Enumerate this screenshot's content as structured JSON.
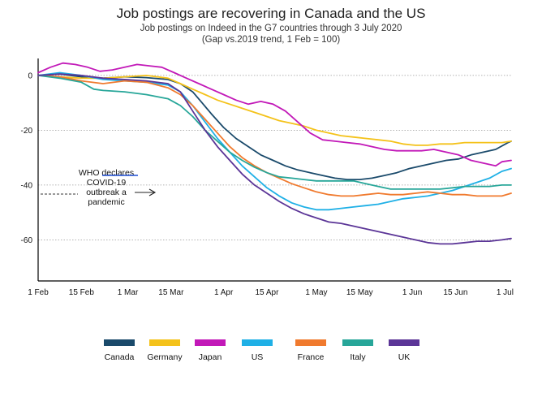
{
  "chart_data": {
    "type": "line",
    "title": "Job postings are recovering in Canada and the US",
    "subtitle": [
      "Job postings on Indeed in the G7 countries through 3 July 2020",
      "(Gap vs.2019 trend, 1 Feb = 100)"
    ],
    "xlabel": "",
    "ylabel": "",
    "ylim": [
      -75,
      5
    ],
    "xlim": [
      0,
      153
    ],
    "yticks": [
      0,
      -20,
      -40,
      -60
    ],
    "ytick_labels": [
      "0",
      "-20",
      "-40",
      "-60"
    ],
    "xticks": [
      0,
      14,
      29,
      43,
      60,
      74,
      90,
      104,
      121,
      135,
      151
    ],
    "xtick_labels": [
      "1 Feb",
      "15 Feb",
      "1 Mar",
      "15 Mar",
      "1 Apr",
      "15 Apr",
      "1 May",
      "15 May",
      "1 Jun",
      "15 Jun",
      "1 Jul"
    ],
    "x_unit": "days since 1 Feb 2020",
    "grid": "horizontal dotted",
    "legend": "bottom",
    "series": [
      {
        "name": "Canada",
        "color": "#1a4a6b",
        "x": [
          0,
          7,
          14,
          21,
          28,
          35,
          42,
          46,
          50,
          53,
          56,
          60,
          64,
          68,
          72,
          76,
          80,
          84,
          88,
          92,
          96,
          100,
          104,
          108,
          112,
          116,
          120,
          124,
          128,
          132,
          136,
          140,
          144,
          148,
          152,
          153
        ],
        "y": [
          0,
          0.5,
          -0.5,
          -1,
          -0.5,
          -0.8,
          -1.5,
          -3,
          -6,
          -10,
          -14,
          -19,
          -23,
          -26,
          -29,
          -31,
          -33,
          -34.5,
          -35.5,
          -36.5,
          -37.5,
          -38,
          -38,
          -37.5,
          -36.5,
          -35.5,
          -34,
          -33,
          -32,
          -31,
          -30.5,
          -29,
          -28,
          -27,
          -24.5,
          -24
        ]
      },
      {
        "name": "Germany",
        "color": "#f4c21a",
        "x": [
          0,
          7,
          14,
          21,
          28,
          35,
          42,
          46,
          50,
          54,
          58,
          62,
          66,
          70,
          74,
          78,
          82,
          86,
          90,
          94,
          98,
          102,
          106,
          110,
          114,
          118,
          122,
          126,
          130,
          134,
          138,
          142,
          146,
          150,
          153
        ],
        "y": [
          0,
          -0.5,
          -1,
          -1,
          -0.5,
          0,
          -1,
          -3,
          -5,
          -7,
          -9,
          -10.5,
          -12,
          -13.5,
          -15,
          -16.5,
          -17.5,
          -18.5,
          -20,
          -21,
          -22,
          -22.5,
          -23,
          -23.5,
          -24,
          -25,
          -25.5,
          -25.5,
          -25,
          -25,
          -24.5,
          -24.5,
          -24.5,
          -24.5,
          -24
        ]
      },
      {
        "name": "Japan",
        "color": "#c219b8",
        "x": [
          0,
          4,
          8,
          12,
          16,
          20,
          24,
          28,
          32,
          36,
          40,
          44,
          48,
          52,
          56,
          60,
          64,
          68,
          72,
          76,
          80,
          84,
          88,
          92,
          96,
          100,
          104,
          108,
          112,
          116,
          120,
          124,
          128,
          132,
          136,
          140,
          144,
          148,
          150,
          153
        ],
        "y": [
          1,
          3,
          4.5,
          4,
          3,
          1.5,
          2,
          3,
          4,
          3.5,
          3,
          1,
          -1,
          -3,
          -5,
          -7,
          -9,
          -10.5,
          -9.5,
          -10.5,
          -13,
          -17,
          -21,
          -23.5,
          -24,
          -24.5,
          -25,
          -26,
          -27,
          -27.5,
          -27.5,
          -27.5,
          -27,
          -28,
          -29,
          -31,
          -32,
          -33,
          -31.5,
          -31
        ]
      },
      {
        "name": "US",
        "color": "#1fb0e6",
        "x": [
          0,
          7,
          14,
          21,
          28,
          35,
          42,
          46,
          50,
          54,
          58,
          62,
          66,
          70,
          74,
          78,
          82,
          86,
          90,
          94,
          98,
          102,
          106,
          110,
          114,
          118,
          122,
          126,
          130,
          134,
          138,
          142,
          146,
          150,
          153
        ],
        "y": [
          0,
          1,
          0,
          -1.5,
          -2,
          -2.5,
          -3.5,
          -6,
          -11,
          -17,
          -23,
          -28,
          -33,
          -37,
          -41,
          -44,
          -46.5,
          -48,
          -49,
          -49,
          -48.5,
          -48,
          -47.5,
          -47,
          -46,
          -45,
          -44.5,
          -44,
          -43,
          -42,
          -40.5,
          -39,
          -37.5,
          -35,
          -34
        ]
      },
      {
        "name": "France",
        "color": "#f07a2e",
        "x": [
          0,
          7,
          14,
          21,
          28,
          35,
          42,
          46,
          50,
          54,
          58,
          62,
          66,
          70,
          74,
          78,
          82,
          86,
          90,
          94,
          98,
          102,
          106,
          110,
          114,
          118,
          122,
          126,
          130,
          134,
          138,
          142,
          146,
          150,
          153
        ],
        "y": [
          0,
          -0.5,
          -2,
          -3,
          -2,
          -2.5,
          -4.5,
          -7,
          -11,
          -16,
          -21,
          -26,
          -30,
          -33,
          -35.5,
          -37.5,
          -39.5,
          -41,
          -42.5,
          -43.5,
          -44,
          -44,
          -43.5,
          -43,
          -43.5,
          -43.5,
          -43,
          -42.5,
          -43,
          -43.5,
          -43.5,
          -44,
          -44,
          -44,
          -43
        ]
      },
      {
        "name": "Italy",
        "color": "#27a699",
        "x": [
          0,
          7,
          14,
          18,
          21,
          28,
          35,
          42,
          46,
          50,
          54,
          58,
          62,
          66,
          70,
          74,
          78,
          82,
          86,
          90,
          94,
          98,
          102,
          106,
          110,
          114,
          118,
          122,
          126,
          130,
          134,
          138,
          142,
          146,
          150,
          153
        ],
        "y": [
          0,
          -1,
          -2.5,
          -5,
          -5.5,
          -6,
          -7,
          -8.5,
          -11,
          -15,
          -20,
          -24,
          -28,
          -31,
          -33.5,
          -35.5,
          -37,
          -37.5,
          -38,
          -38.5,
          -38.5,
          -38.5,
          -38.5,
          -39.5,
          -40.5,
          -41.5,
          -41.5,
          -41.5,
          -41.5,
          -41.5,
          -41,
          -40.5,
          -40.5,
          -40.5,
          -40,
          -40
        ]
      },
      {
        "name": "UK",
        "color": "#5b3597",
        "x": [
          0,
          7,
          14,
          21,
          28,
          35,
          42,
          46,
          50,
          54,
          58,
          62,
          66,
          70,
          74,
          78,
          82,
          86,
          90,
          94,
          98,
          102,
          106,
          110,
          114,
          118,
          122,
          126,
          130,
          134,
          138,
          142,
          146,
          150,
          153
        ],
        "y": [
          0,
          0.5,
          0,
          -1,
          -1.5,
          -2,
          -3,
          -6,
          -13,
          -20,
          -26,
          -31,
          -36,
          -40,
          -43,
          -46,
          -48.5,
          -50.5,
          -52,
          -53.5,
          -54,
          -55,
          -56,
          -57,
          -58,
          -59,
          -60,
          -61,
          -61.5,
          -61.5,
          -61,
          -60.5,
          -60.5,
          -60,
          -59.5
        ]
      }
    ],
    "annotation": {
      "lines": [
        "WHO declares",
        "COVID-19",
        "outbreak a",
        "pandemic"
      ]
    },
    "legend_entries": [
      "Canada",
      "Germany",
      "Japan",
      "US",
      "France",
      "Italy",
      "UK"
    ]
  }
}
